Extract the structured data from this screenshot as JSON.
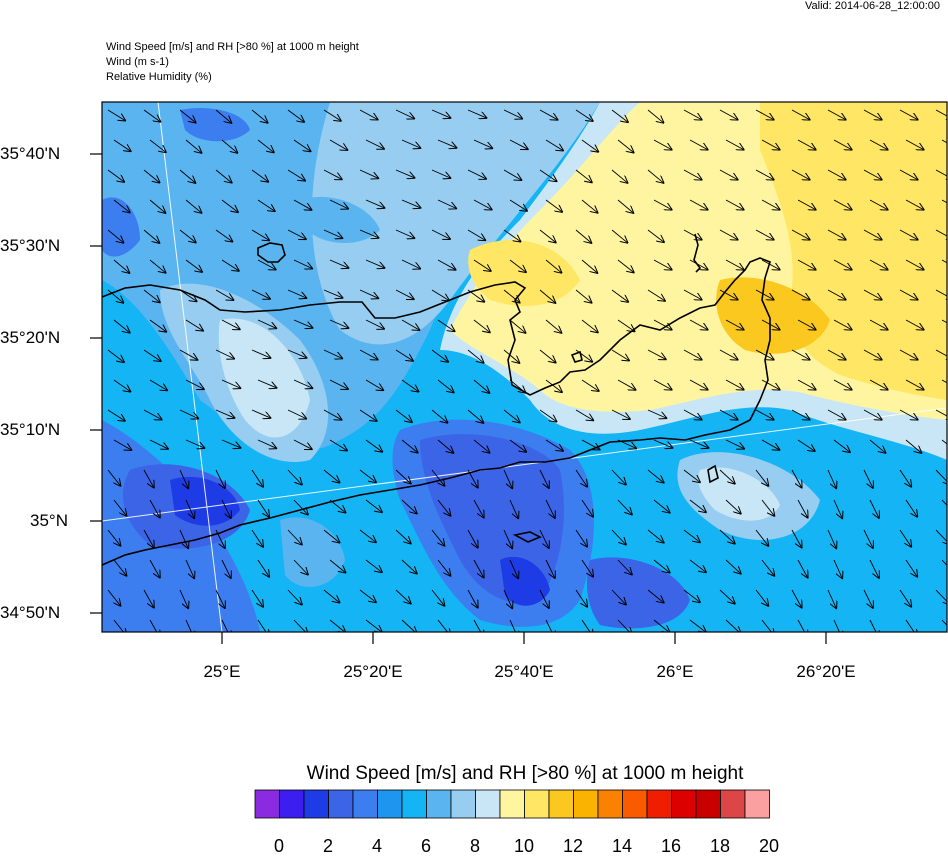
{
  "header": {
    "valid": "Valid: 2014-06-28_12:00:00",
    "line1": "Wind Speed [m/s] and RH [>80 %] at 1000 m height",
    "line2": "Wind   (m s-1)",
    "line3": "Relative Humidity   (%)"
  },
  "axes": {
    "y_labels": [
      "35°40'N",
      "35°30'N",
      "35°20'N",
      "35°10'N",
      "35°N",
      "34°50'N"
    ],
    "x_labels": [
      "25°E",
      "25°20'E",
      "25°40'E",
      "26°E",
      "26°20'E"
    ]
  },
  "colorbar": {
    "title": "Wind Speed [m/s] and RH [>80 %] at 1000 m height",
    "labels": [
      "0",
      "2",
      "4",
      "6",
      "8",
      "10",
      "12",
      "14",
      "16",
      "18",
      "20"
    ],
    "colors": [
      "#8a2be2",
      "#3c1ef0",
      "#1e3ce6",
      "#3c64e6",
      "#3c7ef0",
      "#1e96f0",
      "#14b4f5",
      "#5ab4f0",
      "#96cdf0",
      "#c8e6f5",
      "#fff5a0",
      "#ffe664",
      "#fac81e",
      "#fab400",
      "#fa8200",
      "#fa5a00",
      "#f01e00",
      "#dc0000",
      "#c80000",
      "#dc4646",
      "#faa0a0"
    ]
  }
}
